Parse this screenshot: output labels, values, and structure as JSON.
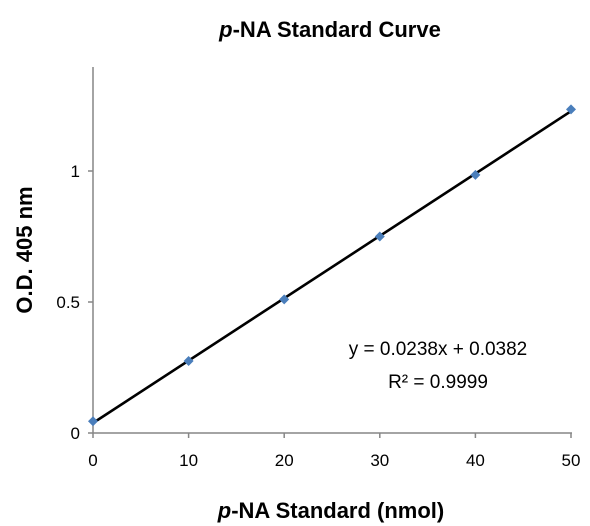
{
  "chart_data": {
    "type": "scatter",
    "title": {
      "italic": "p",
      "rest": "-NA Standard Curve"
    },
    "xlabel": {
      "italic": "p",
      "rest": "-NA Standard (nmol)"
    },
    "ylabel": "O.D. 405 nm",
    "xlim": [
      0,
      50
    ],
    "ylim": [
      0,
      1.3
    ],
    "x_ticks": [
      0,
      10,
      20,
      30,
      40,
      50
    ],
    "x_tick_labels": [
      "0",
      "10",
      "20",
      "30",
      "40",
      "50"
    ],
    "y_ticks": [
      0,
      0.5,
      1
    ],
    "y_tick_labels": [
      "0",
      "0.5",
      "1"
    ],
    "grid": false,
    "series": [
      {
        "x": [
          0,
          10,
          20,
          30,
          40,
          50
        ],
        "y": [
          0.045,
          0.275,
          0.51,
          0.75,
          0.985,
          1.235
        ],
        "color": "#4a7ebb",
        "marker": "diamond"
      }
    ],
    "trendline": {
      "type": "linear",
      "slope": 0.0238,
      "intercept": 0.0382,
      "x_range": [
        0,
        50
      ],
      "color": "#000000"
    },
    "annotations": [
      "y = 0.0238x + 0.0382",
      "R² = 0.9999"
    ]
  }
}
